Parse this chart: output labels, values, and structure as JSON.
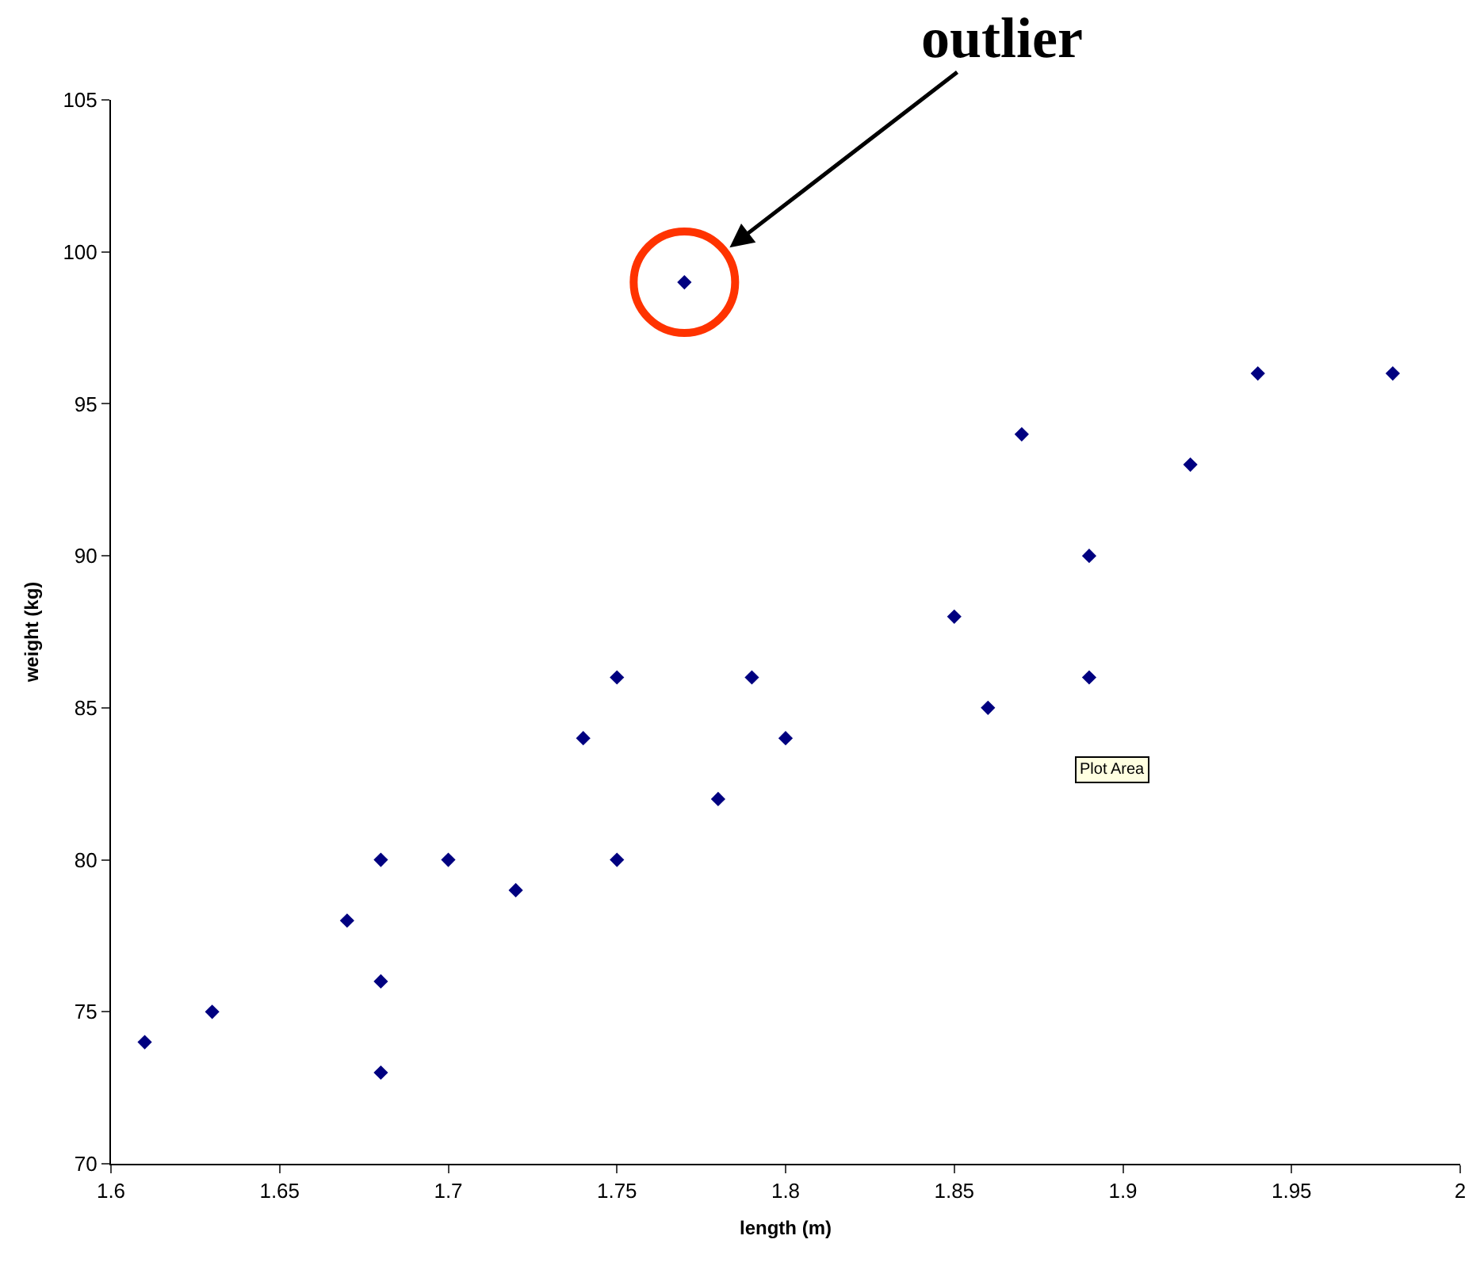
{
  "chart_data": {
    "type": "scatter",
    "xlabel": "length (m)",
    "ylabel": "weight (kg)",
    "x": [
      1.61,
      1.63,
      1.67,
      1.68,
      1.68,
      1.68,
      1.7,
      1.72,
      1.74,
      1.75,
      1.75,
      1.77,
      1.78,
      1.79,
      1.8,
      1.85,
      1.86,
      1.87,
      1.89,
      1.89,
      1.92,
      1.94,
      1.98
    ],
    "series": [
      {
        "color": "#000080",
        "values": [
          74,
          75,
          78,
          80,
          76,
          73,
          80,
          79,
          84,
          86,
          80,
          99,
          82,
          86,
          84,
          88,
          85,
          94,
          90,
          86,
          93,
          96,
          96
        ]
      }
    ],
    "xlim": [
      1.6,
      2
    ],
    "xticks": [
      1.6,
      1.65,
      1.7,
      1.75,
      1.8,
      1.85,
      1.9,
      1.95,
      2
    ],
    "ylim": [
      70,
      105
    ],
    "yticks": [
      70,
      75,
      80,
      85,
      90,
      95,
      100,
      105
    ],
    "grid": false,
    "marker": "diamond",
    "annotations": [
      {
        "text": "outlier",
        "x": 1.77,
        "y": 99
      },
      "Plot Area"
    ]
  }
}
